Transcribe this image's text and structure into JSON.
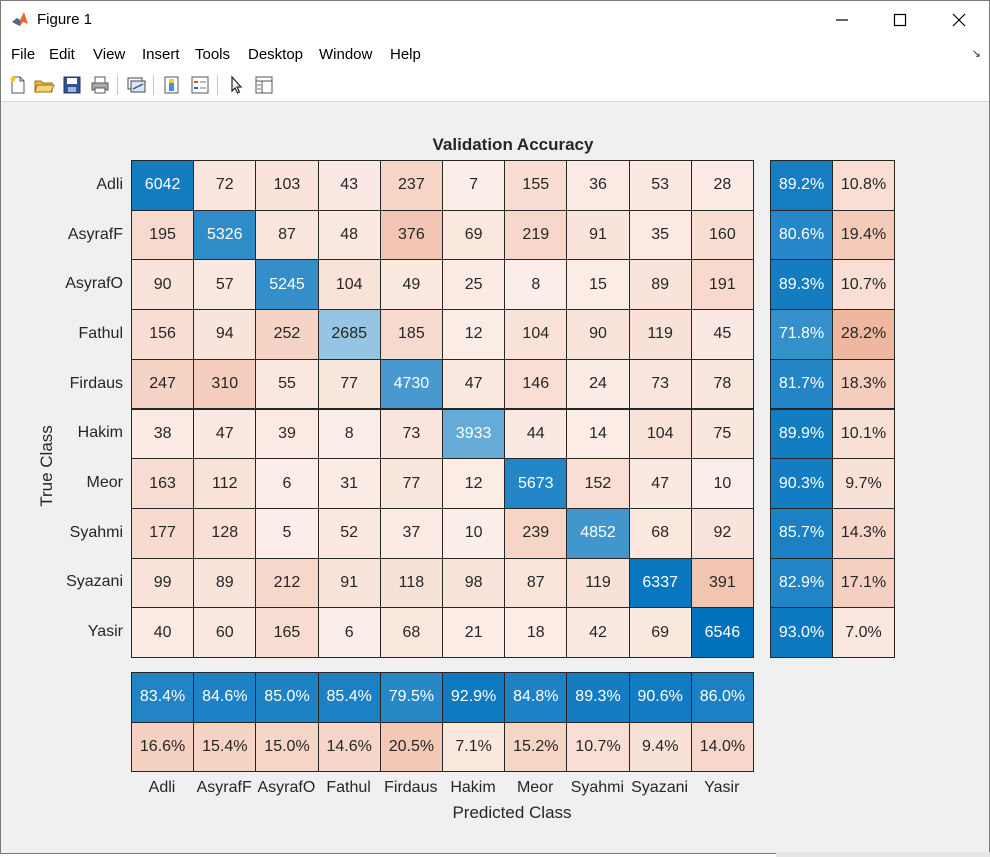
{
  "window": {
    "title": "Figure 1",
    "menu": [
      "File",
      "Edit",
      "View",
      "Insert",
      "Tools",
      "Desktop",
      "Window",
      "Help"
    ],
    "toolbar_icons": [
      "new-figure-icon",
      "open-file-icon",
      "save-icon",
      "print-icon",
      "link-plot-icon",
      "insert-colorbar-icon",
      "insert-legend-icon",
      "edit-plot-icon",
      "property-inspector-icon"
    ]
  },
  "chart_data": {
    "type": "heatmap",
    "title": "Validation Accuracy",
    "xlabel": "Predicted Class",
    "ylabel": "True Class",
    "classes": [
      "Adli",
      "AsyrafF",
      "AsyrafO",
      "Fathul",
      "Firdaus",
      "Hakim",
      "Meor",
      "Syahmi",
      "Syazani",
      "Yasir"
    ],
    "matrix": [
      [
        6042,
        72,
        103,
        43,
        237,
        7,
        155,
        36,
        53,
        28
      ],
      [
        195,
        5326,
        87,
        48,
        376,
        69,
        219,
        91,
        35,
        160
      ],
      [
        90,
        57,
        5245,
        104,
        49,
        25,
        8,
        15,
        89,
        191
      ],
      [
        156,
        94,
        252,
        2685,
        185,
        12,
        104,
        90,
        119,
        45
      ],
      [
        247,
        310,
        55,
        77,
        4730,
        47,
        146,
        24,
        73,
        78
      ],
      [
        38,
        47,
        39,
        8,
        73,
        3933,
        44,
        14,
        104,
        75
      ],
      [
        163,
        112,
        6,
        31,
        77,
        12,
        5673,
        152,
        47,
        10
      ],
      [
        177,
        128,
        5,
        52,
        37,
        10,
        239,
        4852,
        68,
        92
      ],
      [
        99,
        89,
        212,
        91,
        118,
        98,
        87,
        119,
        6337,
        391
      ],
      [
        40,
        60,
        165,
        6,
        68,
        21,
        18,
        42,
        69,
        6546
      ]
    ],
    "row_summary": {
      "correct": [
        "89.2%",
        "80.6%",
        "89.3%",
        "71.8%",
        "81.7%",
        "89.9%",
        "90.3%",
        "85.7%",
        "82.9%",
        "93.0%"
      ],
      "incorrect": [
        "10.8%",
        "19.4%",
        "10.7%",
        "28.2%",
        "18.3%",
        "10.1%",
        "9.7%",
        "14.3%",
        "17.1%",
        "7.0%"
      ]
    },
    "column_summary": {
      "correct": [
        "83.4%",
        "84.6%",
        "85.0%",
        "85.4%",
        "79.5%",
        "92.9%",
        "84.8%",
        "89.3%",
        "90.6%",
        "86.0%"
      ],
      "incorrect": [
        "16.6%",
        "15.4%",
        "15.0%",
        "14.6%",
        "20.5%",
        "7.1%",
        "15.2%",
        "10.7%",
        "9.4%",
        "14.0%"
      ]
    },
    "colors": {
      "diagonal_max": "#0072bd",
      "offdiag_max": "#d95319",
      "background": "#ffffff",
      "grid": "#262626"
    }
  }
}
